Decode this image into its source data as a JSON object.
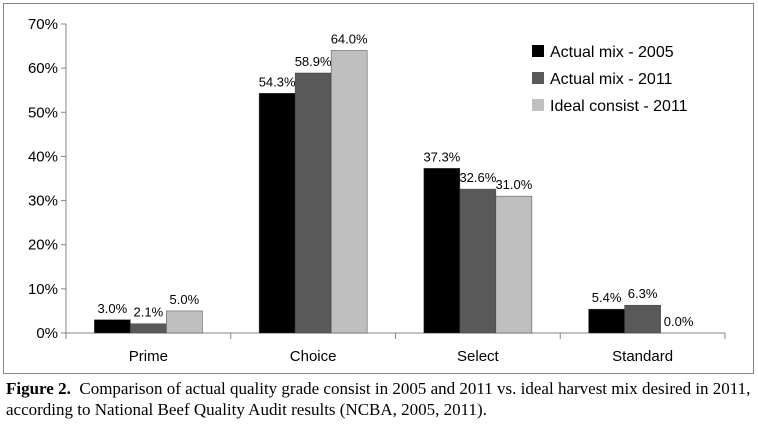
{
  "chart_data": {
    "type": "bar",
    "title": "",
    "xlabel": "",
    "ylabel": "",
    "categories": [
      "Prime",
      "Choice",
      "Select",
      "Standard"
    ],
    "series": [
      {
        "name": "Actual mix - 2005",
        "values": [
          3.0,
          54.3,
          37.3,
          5.4
        ],
        "labels": [
          "3.0%",
          "54.3%",
          "37.3%",
          "5.4%"
        ],
        "color": "#000000"
      },
      {
        "name": "Actual mix - 2011",
        "values": [
          2.1,
          58.9,
          32.6,
          6.3
        ],
        "labels": [
          "2.1%",
          "58.9%",
          "32.6%",
          "6.3%"
        ],
        "color": "#595959"
      },
      {
        "name": "Ideal consist - 2011",
        "values": [
          5.0,
          64.0,
          31.0,
          0.0
        ],
        "labels": [
          "5.0%",
          "64.0%",
          "31.0%",
          "0.0%"
        ],
        "color": "#bfbfbf"
      }
    ],
    "ylim": [
      0,
      70
    ],
    "yticks": [
      0,
      10,
      20,
      30,
      40,
      50,
      60,
      70
    ],
    "ytick_labels": [
      "0%",
      "10%",
      "20%",
      "30%",
      "40%",
      "50%",
      "60%",
      "70%"
    ],
    "grid": false,
    "legend_position": "top-right"
  },
  "caption": {
    "figure_label": "Figure 2.",
    "text": "Comparison of actual quality grade consist in 2005 and 2011 vs. ideal harvest mix desired in 2011, according to National Beef Quality Audit results (NCBA, 2005, 2011)."
  }
}
